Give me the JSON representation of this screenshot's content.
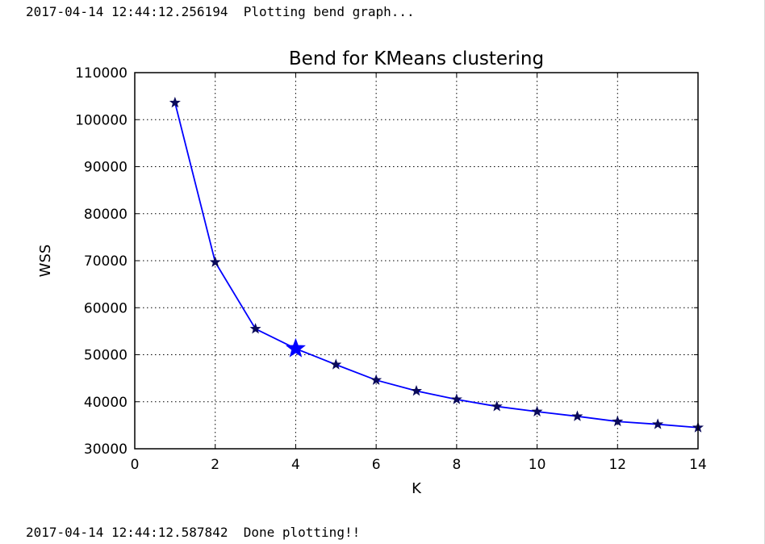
{
  "log": {
    "start_line": "2017-04-14 12:44:12.256194  Plotting bend graph...",
    "end_line": "2017-04-14 12:44:12.587842  Done plotting!!"
  },
  "chart_data": {
    "type": "line",
    "title": "Bend for KMeans clustering",
    "xlabel": "K",
    "ylabel": "WSS",
    "xlim": [
      0,
      14
    ],
    "ylim": [
      30000,
      110000
    ],
    "xticks": [
      0,
      2,
      4,
      6,
      8,
      10,
      12,
      14
    ],
    "yticks": [
      30000,
      40000,
      50000,
      60000,
      70000,
      80000,
      90000,
      100000,
      110000
    ],
    "grid": true,
    "series": [
      {
        "x": [
          1,
          2,
          3,
          4,
          5,
          6,
          7,
          8,
          9,
          10,
          11,
          12,
          13,
          14
        ],
        "y": [
          103600,
          69700,
          55500,
          51300,
          47900,
          44600,
          42300,
          40500,
          39000,
          37900,
          36900,
          35800,
          35200,
          34500
        ],
        "color": "#0000ff",
        "marker": "star",
        "marker_color": "#0a0a5a"
      }
    ],
    "highlight": {
      "x": 4,
      "y": 51300,
      "marker": "star",
      "color": "#0000ff"
    }
  }
}
